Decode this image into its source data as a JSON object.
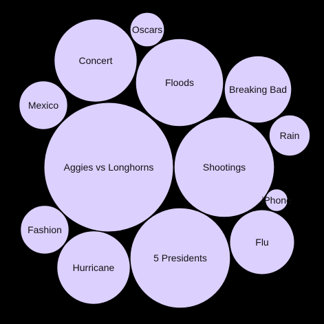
{
  "chart_data": {
    "type": "bubble",
    "title": "",
    "colors": {
      "background": "#000000",
      "bubble_fill": "#dcd0ff",
      "label_text": "#111111"
    },
    "bubbles": [
      {
        "label": "Aggies vs Longhorns",
        "value": 100
      },
      {
        "label": "Shootings",
        "value": 60
      },
      {
        "label": "5 Presidents",
        "value": 60
      },
      {
        "label": "Floods",
        "value": 46
      },
      {
        "label": "Concert",
        "value": 41
      },
      {
        "label": "Hurricane",
        "value": 32
      },
      {
        "label": "Flu",
        "value": 25
      },
      {
        "label": "Breaking Bad",
        "value": 27
      },
      {
        "label": "Mexico",
        "value": 14
      },
      {
        "label": "Fashion",
        "value": 14
      },
      {
        "label": "Rain",
        "value": 10
      },
      {
        "label": "Oscars",
        "value": 7
      },
      {
        "label": "iPhone",
        "value": 3
      }
    ]
  }
}
